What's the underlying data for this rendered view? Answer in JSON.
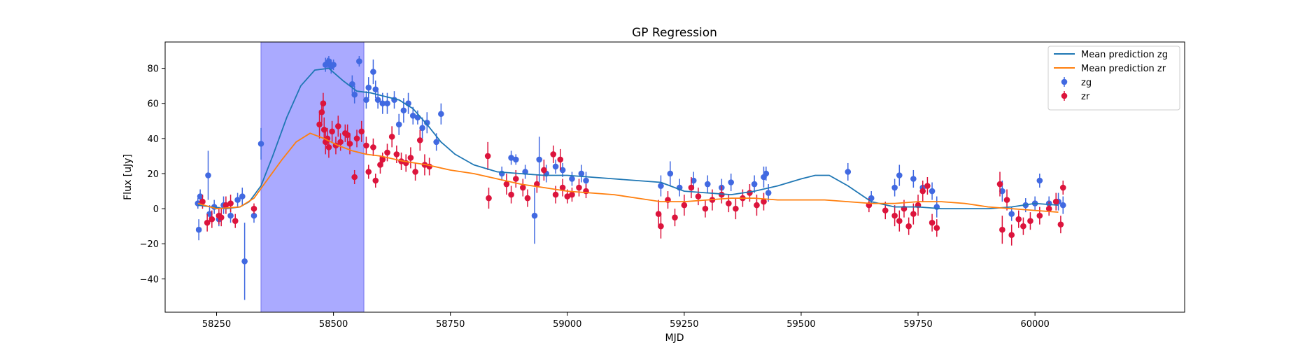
{
  "chart_data": {
    "type": "scatter",
    "title": "GP Regression",
    "xlabel": "MJD",
    "ylabel": "Flux [uJy]",
    "xlim": [
      58140,
      60320
    ],
    "ylim": [
      -59,
      95
    ],
    "xticks": [
      58250,
      58500,
      58750,
      59000,
      59250,
      59500,
      59750,
      60000
    ],
    "yticks": [
      -40,
      -20,
      0,
      20,
      40,
      60,
      80
    ],
    "grid": false,
    "legend_position": "top-right",
    "shaded_region": {
      "x_start": 58345,
      "x_end": 58565,
      "color": "#aaaaff"
    },
    "series": [
      {
        "name": "Mean prediction zg",
        "kind": "line",
        "color": "#1f77b4",
        "x": [
          58210,
          58240,
          58270,
          58300,
          58320,
          58345,
          58370,
          58400,
          58430,
          58460,
          58490,
          58520,
          58550,
          58580,
          58610,
          58640,
          58670,
          58700,
          58730,
          58760,
          58800,
          58850,
          58900,
          58950,
          59000,
          59050,
          59100,
          59150,
          59200,
          59250,
          59300,
          59350,
          59400,
          59450,
          59500,
          59530,
          59560,
          59600,
          59650,
          59700,
          59750,
          59800,
          59850,
          59900,
          59950,
          60000,
          60050
        ],
        "y": [
          2,
          1,
          0,
          1,
          4,
          13,
          30,
          52,
          70,
          79,
          80,
          73,
          67,
          66,
          64,
          62,
          57,
          48,
          38,
          31,
          25,
          21,
          20,
          19,
          19,
          18,
          17,
          16,
          15,
          10,
          9,
          8,
          10,
          13,
          17,
          19,
          19,
          13,
          4,
          1,
          1,
          0,
          0,
          0,
          1,
          3,
          2
        ]
      },
      {
        "name": "Mean prediction zr",
        "kind": "line",
        "color": "#ff7f0e",
        "x": [
          58210,
          58250,
          58300,
          58330,
          58360,
          58390,
          58420,
          58450,
          58480,
          58510,
          58540,
          58570,
          58600,
          58650,
          58700,
          58750,
          58800,
          58850,
          58900,
          58950,
          59000,
          59050,
          59100,
          59150,
          59200,
          59250,
          59300,
          59350,
          59400,
          59450,
          59500,
          59550,
          59600,
          59650,
          59700,
          59750,
          59800,
          59850,
          59900,
          59950,
          60000,
          60050
        ],
        "y": [
          3,
          0,
          1,
          6,
          17,
          28,
          38,
          43,
          40,
          36,
          33,
          31,
          30,
          27,
          25,
          22,
          20,
          17,
          14,
          12,
          10,
          9,
          8,
          6,
          4,
          4,
          5,
          6,
          6,
          5,
          5,
          5,
          4,
          3,
          3,
          4,
          4,
          3,
          1,
          0,
          -1,
          -2
        ]
      },
      {
        "name": "zg",
        "kind": "errorbar",
        "color": "#4169e1",
        "points": [
          [
            58210,
            3,
            3
          ],
          [
            58212,
            -12,
            6
          ],
          [
            58215,
            7,
            4
          ],
          [
            58232,
            19,
            14
          ],
          [
            58235,
            -3,
            5
          ],
          [
            58245,
            1,
            4
          ],
          [
            58255,
            -6,
            4
          ],
          [
            58265,
            2,
            5
          ],
          [
            58280,
            -4,
            4
          ],
          [
            58295,
            5,
            4
          ],
          [
            58305,
            7,
            5
          ],
          [
            58310,
            -30,
            22
          ],
          [
            58330,
            -4,
            4
          ],
          [
            58345,
            37,
            9
          ],
          [
            58483,
            82,
            4
          ],
          [
            58487,
            83,
            3
          ],
          [
            58490,
            84,
            3
          ],
          [
            58495,
            81,
            4
          ],
          [
            58500,
            82,
            3
          ],
          [
            58540,
            71,
            5
          ],
          [
            58545,
            65,
            5
          ],
          [
            58555,
            84,
            3
          ],
          [
            58570,
            62,
            5
          ],
          [
            58575,
            69,
            6
          ],
          [
            58585,
            78,
            7
          ],
          [
            58590,
            68,
            5
          ],
          [
            58595,
            62,
            5
          ],
          [
            58605,
            60,
            6
          ],
          [
            58615,
            60,
            6
          ],
          [
            58630,
            62,
            5
          ],
          [
            58640,
            48,
            6
          ],
          [
            58650,
            56,
            7
          ],
          [
            58660,
            60,
            6
          ],
          [
            58670,
            53,
            5
          ],
          [
            58680,
            52,
            4
          ],
          [
            58690,
            46,
            6
          ],
          [
            58700,
            49,
            6
          ],
          [
            58720,
            38,
            5
          ],
          [
            58730,
            54,
            6
          ],
          [
            58860,
            20,
            4
          ],
          [
            58880,
            29,
            4
          ],
          [
            58890,
            28,
            3
          ],
          [
            58910,
            21,
            4
          ],
          [
            58930,
            -4,
            16
          ],
          [
            58940,
            28,
            13
          ],
          [
            58955,
            20,
            5
          ],
          [
            58975,
            24,
            4
          ],
          [
            58990,
            22,
            4
          ],
          [
            59010,
            17,
            4
          ],
          [
            59030,
            20,
            5
          ],
          [
            59040,
            16,
            5
          ],
          [
            59200,
            13,
            6
          ],
          [
            59220,
            20,
            7
          ],
          [
            59240,
            12,
            5
          ],
          [
            59270,
            16,
            5
          ],
          [
            59300,
            14,
            5
          ],
          [
            59330,
            12,
            5
          ],
          [
            59350,
            15,
            5
          ],
          [
            59400,
            14,
            5
          ],
          [
            59420,
            18,
            6
          ],
          [
            59425,
            20,
            4
          ],
          [
            59430,
            9,
            5
          ],
          [
            59600,
            21,
            5
          ],
          [
            59650,
            6,
            4
          ],
          [
            59700,
            12,
            5
          ],
          [
            59710,
            19,
            6
          ],
          [
            59740,
            17,
            5
          ],
          [
            59760,
            12,
            4
          ],
          [
            59780,
            10,
            5
          ],
          [
            59790,
            1,
            6
          ],
          [
            59930,
            10,
            6
          ],
          [
            59950,
            -3,
            4
          ],
          [
            59980,
            2,
            4
          ],
          [
            60000,
            3,
            4
          ],
          [
            60010,
            16,
            4
          ],
          [
            60030,
            3,
            4
          ],
          [
            60050,
            4,
            5
          ],
          [
            60060,
            2,
            5
          ]
        ]
      },
      {
        "name": "zr",
        "kind": "errorbar",
        "color": "#dc143c",
        "points": [
          [
            58220,
            4,
            4
          ],
          [
            58230,
            -8,
            5
          ],
          [
            58240,
            -6,
            5
          ],
          [
            58255,
            -4,
            5
          ],
          [
            58260,
            -5,
            5
          ],
          [
            58270,
            2,
            5
          ],
          [
            58280,
            3,
            5
          ],
          [
            58290,
            -7,
            4
          ],
          [
            58330,
            0,
            3
          ],
          [
            58470,
            48,
            8
          ],
          [
            58475,
            55,
            6
          ],
          [
            58478,
            60,
            6
          ],
          [
            58480,
            45,
            7
          ],
          [
            58483,
            38,
            7
          ],
          [
            58487,
            40,
            6
          ],
          [
            58490,
            35,
            6
          ],
          [
            58497,
            44,
            6
          ],
          [
            58505,
            36,
            5
          ],
          [
            58510,
            47,
            6
          ],
          [
            58515,
            38,
            5
          ],
          [
            58525,
            43,
            5
          ],
          [
            58530,
            42,
            6
          ],
          [
            58535,
            37,
            6
          ],
          [
            58545,
            18,
            4
          ],
          [
            58550,
            40,
            5
          ],
          [
            58560,
            44,
            6
          ],
          [
            58570,
            36,
            5
          ],
          [
            58575,
            21,
            4
          ],
          [
            58585,
            35,
            5
          ],
          [
            58590,
            16,
            4
          ],
          [
            58600,
            25,
            5
          ],
          [
            58605,
            28,
            4
          ],
          [
            58615,
            32,
            5
          ],
          [
            58625,
            41,
            6
          ],
          [
            58635,
            31,
            5
          ],
          [
            58645,
            27,
            5
          ],
          [
            58655,
            26,
            5
          ],
          [
            58665,
            29,
            6
          ],
          [
            58675,
            21,
            5
          ],
          [
            58685,
            39,
            6
          ],
          [
            58695,
            25,
            6
          ],
          [
            58705,
            24,
            5
          ],
          [
            58830,
            30,
            8
          ],
          [
            58832,
            6,
            6
          ],
          [
            58870,
            14,
            6
          ],
          [
            58880,
            8,
            5
          ],
          [
            58890,
            17,
            5
          ],
          [
            58905,
            12,
            5
          ],
          [
            58915,
            6,
            5
          ],
          [
            58935,
            14,
            5
          ],
          [
            58950,
            22,
            6
          ],
          [
            58970,
            31,
            5
          ],
          [
            58975,
            8,
            5
          ],
          [
            58985,
            28,
            6
          ],
          [
            58990,
            12,
            5
          ],
          [
            59000,
            7,
            4
          ],
          [
            59010,
            8,
            4
          ],
          [
            59025,
            12,
            5
          ],
          [
            59040,
            10,
            4
          ],
          [
            59195,
            -3,
            8
          ],
          [
            59200,
            -10,
            7
          ],
          [
            59215,
            5,
            5
          ],
          [
            59230,
            -5,
            5
          ],
          [
            59250,
            2,
            6
          ],
          [
            59265,
            12,
            6
          ],
          [
            59280,
            7,
            5
          ],
          [
            59295,
            0,
            5
          ],
          [
            59310,
            5,
            6
          ],
          [
            59330,
            8,
            5
          ],
          [
            59345,
            3,
            5
          ],
          [
            59360,
            0,
            6
          ],
          [
            59375,
            6,
            5
          ],
          [
            59390,
            9,
            5
          ],
          [
            59405,
            2,
            6
          ],
          [
            59420,
            4,
            5
          ],
          [
            59645,
            2,
            4
          ],
          [
            59680,
            -1,
            5
          ],
          [
            59700,
            -4,
            6
          ],
          [
            59710,
            -7,
            6
          ],
          [
            59720,
            0,
            5
          ],
          [
            59730,
            -10,
            5
          ],
          [
            59740,
            -3,
            6
          ],
          [
            59750,
            2,
            6
          ],
          [
            59760,
            10,
            6
          ],
          [
            59770,
            13,
            5
          ],
          [
            59780,
            -8,
            5
          ],
          [
            59790,
            -11,
            5
          ],
          [
            59925,
            14,
            7
          ],
          [
            59930,
            -12,
            8
          ],
          [
            59940,
            5,
            6
          ],
          [
            59950,
            -15,
            6
          ],
          [
            59965,
            -6,
            5
          ],
          [
            59975,
            -10,
            5
          ],
          [
            59990,
            -7,
            5
          ],
          [
            60010,
            -4,
            5
          ],
          [
            60030,
            0,
            4
          ],
          [
            60045,
            4,
            5
          ],
          [
            60055,
            -9,
            5
          ],
          [
            60060,
            12,
            4
          ]
        ]
      }
    ]
  }
}
